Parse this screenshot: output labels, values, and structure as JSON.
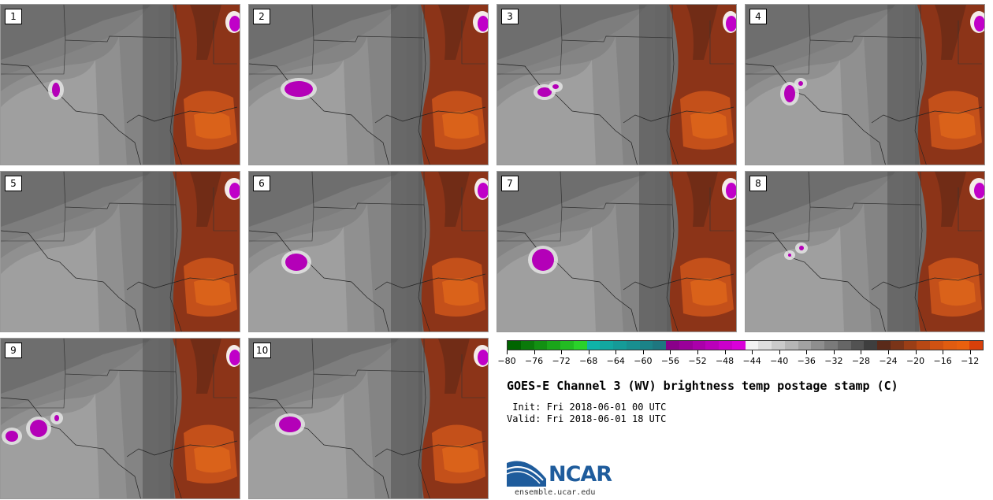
{
  "figure": {
    "title": "GOES-E Channel 3 (WV) brightness temp postage stamp (C)",
    "init_label": " Init:",
    "init_value": "Fri 2018-06-01 00 UTC",
    "valid_label": "Valid:",
    "valid_value": "Fri 2018-06-01 18 UTC"
  },
  "panels": [
    {
      "label": "1"
    },
    {
      "label": "2"
    },
    {
      "label": "3"
    },
    {
      "label": "4"
    },
    {
      "label": "5"
    },
    {
      "label": "6"
    },
    {
      "label": "7"
    },
    {
      "label": "8"
    },
    {
      "label": "9"
    },
    {
      "label": "10"
    }
  ],
  "colorbar": {
    "units": "C",
    "min": -80,
    "max": -10,
    "tick_values": [
      -80,
      -76,
      -72,
      -68,
      -64,
      -60,
      -56,
      -52,
      -48,
      -44,
      -40,
      -36,
      -32,
      -28,
      -24,
      -20,
      -16,
      -12
    ],
    "tick_labels": [
      "−80",
      "−76",
      "−72",
      "−68",
      "−64",
      "−60",
      "−56",
      "−52",
      "−48",
      "−44",
      "−40",
      "−36",
      "−32",
      "−28",
      "−24",
      "−20",
      "−16",
      "−12"
    ],
    "colors": [
      "#006400",
      "#0a7a0a",
      "#129012",
      "#1aa61a",
      "#22bc22",
      "#2ad22a",
      "#0fb3a8",
      "#12a7a0",
      "#159b98",
      "#188f90",
      "#1b8388",
      "#1e7780",
      "#8a008a",
      "#9a009a",
      "#aa00aa",
      "#ba00ba",
      "#ca00ca",
      "#da00da",
      "#f2f2f2",
      "#dedede",
      "#cacaca",
      "#b6b6b6",
      "#a2a2a2",
      "#8e8e8e",
      "#7a7a7a",
      "#666666",
      "#525252",
      "#3e3e3e",
      "#5a2a1a",
      "#7a3418",
      "#9a3e16",
      "#b84814",
      "#d05212",
      "#e05c10",
      "#e8600e",
      "#d8400a"
    ]
  },
  "logo": {
    "text": "NCAR",
    "url": "ensemble.ucar.edu"
  }
}
